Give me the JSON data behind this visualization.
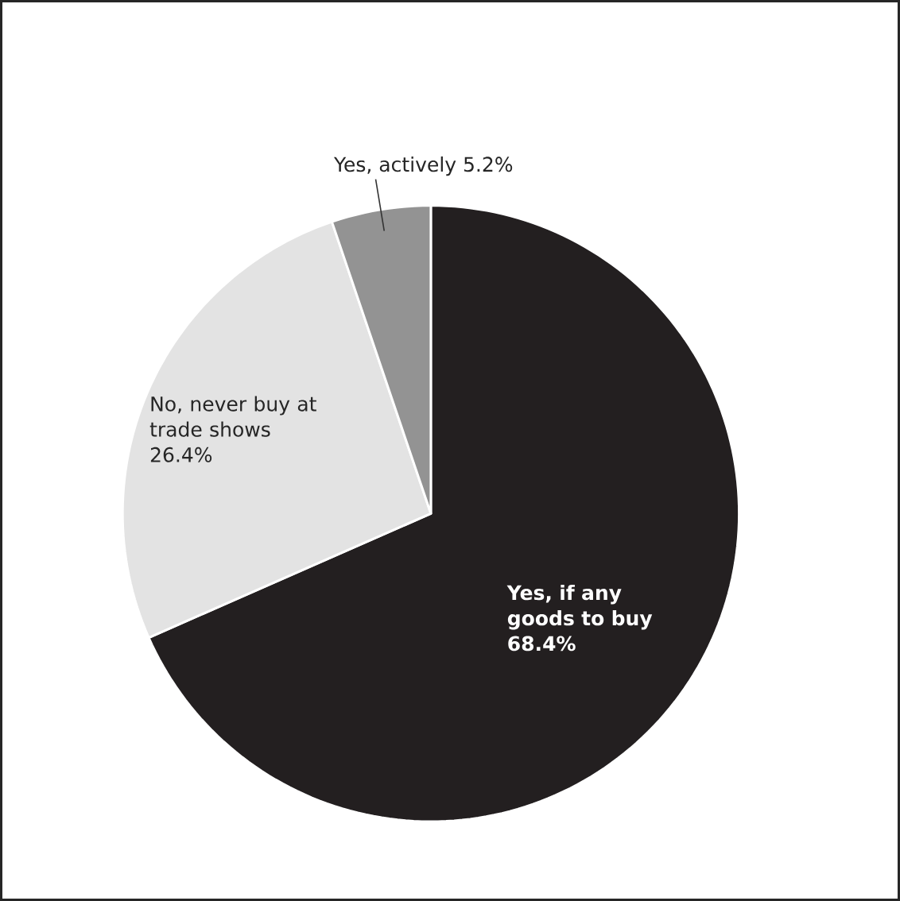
{
  "chart_data": {
    "type": "pie",
    "categories": [
      "Yes, if any goods to buy",
      "No, never buy at trade shows",
      "Yes, actively"
    ],
    "values": [
      68.4,
      26.4,
      5.2
    ],
    "colors": [
      "#231f20",
      "#e3e3e3",
      "#939393"
    ],
    "value_labels": [
      "68.4%",
      "26.4%",
      "5.2%"
    ]
  }
}
